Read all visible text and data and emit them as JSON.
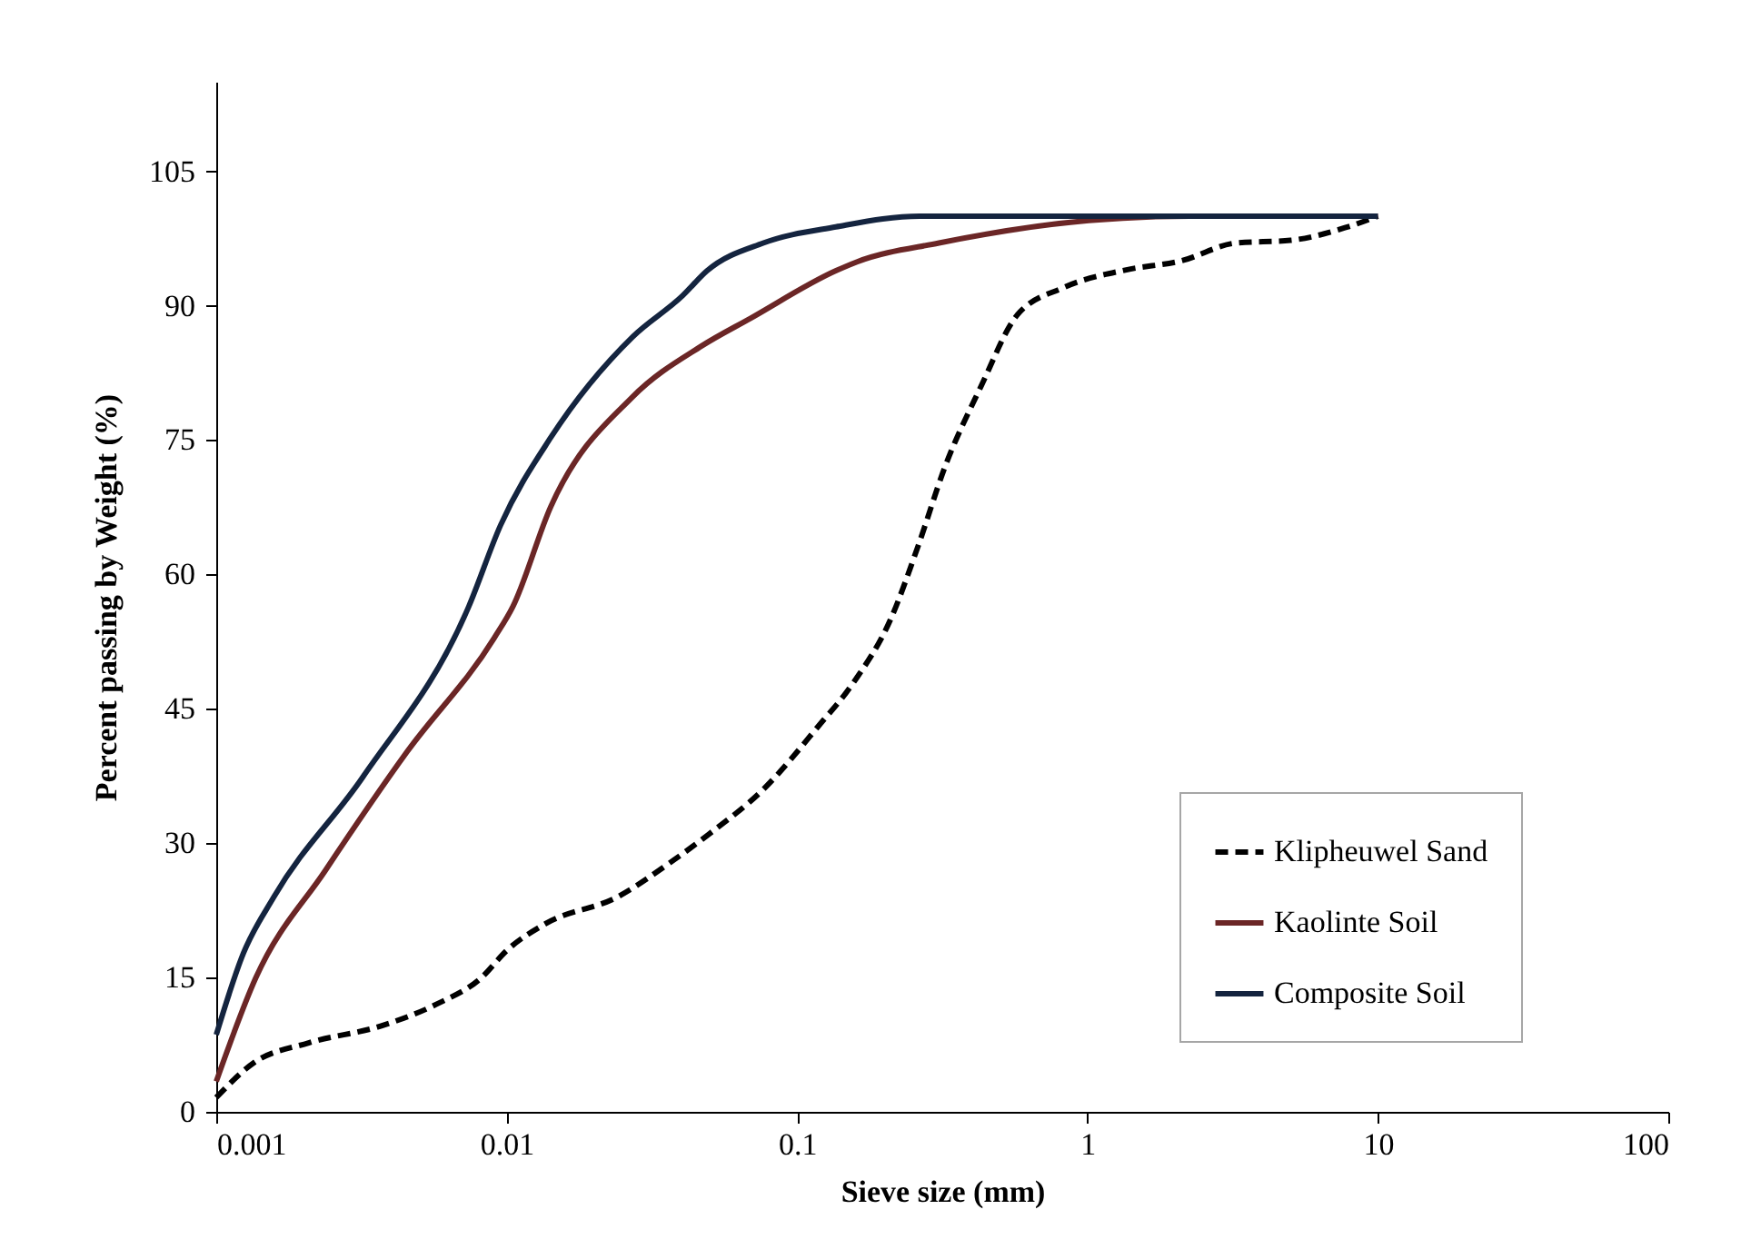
{
  "chart_data": {
    "type": "line",
    "xlabel": "Sieve size (mm)",
    "ylabel": "Percent passing by Weight (%)",
    "log": "x",
    "xlim": [
      0.001,
      100
    ],
    "xticks": [
      0.001,
      0.01,
      0.1,
      1,
      10,
      100
    ],
    "ylim": [
      0,
      115
    ],
    "yticks": [
      0,
      15,
      30,
      45,
      60,
      75,
      90,
      105
    ],
    "grid": false,
    "legend": "bottom right",
    "marker": "none",
    "series": [
      {
        "name": "Klipheuwel Sand",
        "color": "#000000",
        "line_style": "dashed",
        "x": [
          0.001,
          0.00135,
          0.00208,
          0.0037,
          0.00572,
          0.0082,
          0.01,
          0.0136,
          0.0241,
          0.0372,
          0.0497,
          0.0765,
          0.118,
          0.157,
          0.21,
          0.26,
          0.323,
          0.43,
          0.574,
          0.824,
          1.36,
          2.1,
          3.24,
          5,
          7.7,
          10
        ],
        "values": [
          1.6,
          5.5,
          7.7,
          9.6,
          12,
          15,
          18,
          21,
          24,
          28,
          31,
          36,
          43,
          48,
          55,
          63,
          72,
          81,
          89,
          92,
          94,
          95,
          97,
          97.3,
          98.7,
          100
        ]
      },
      {
        "name": "Kaolinte Soil",
        "color": "#6b2626",
        "line_style": "solid",
        "x": [
          0.001,
          0.00137,
          0.00237,
          0.00454,
          0.00906,
          0.0105,
          0.0142,
          0.0271,
          0.0469,
          0.0692,
          0.136,
          0.161,
          0.308,
          1.01,
          2.24,
          10
        ],
        "values": [
          3.4,
          15,
          26.9,
          40.2,
          52.9,
          56.4,
          67.6,
          79.8,
          85.5,
          88.6,
          93.9,
          94.9,
          97,
          99.5,
          100,
          100
        ]
      },
      {
        "name": "Composite Soil",
        "color": "#14243f",
        "line_style": "solid",
        "x": [
          0.001,
          0.00124,
          0.00158,
          0.0032,
          0.0074,
          0.00953,
          0.0142,
          0.0271,
          0.0403,
          0.049,
          0.0765,
          0.136,
          0.264,
          10
        ],
        "values": [
          8.6,
          17.7,
          24,
          37.4,
          56.4,
          65.5,
          75.3,
          86.5,
          91.1,
          93.9,
          97,
          98.8,
          100,
          100
        ]
      }
    ]
  }
}
